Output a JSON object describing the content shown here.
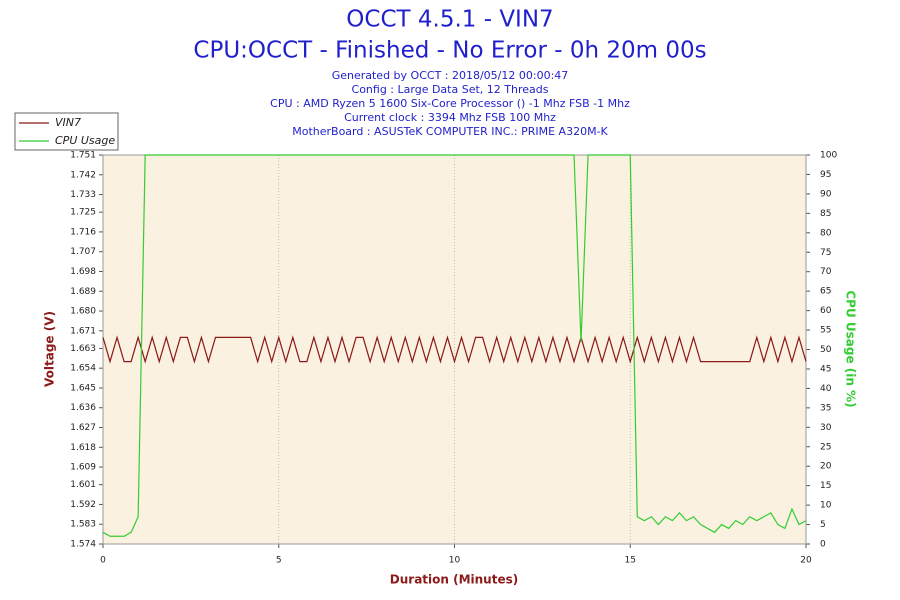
{
  "chart_data": {
    "type": "line",
    "title": "OCCT 4.5.1 - VIN7",
    "subtitle": "CPU:OCCT - Finished - No Error - 0h 20m 00s",
    "info": [
      "Generated by OCCT : 2018/05/12 00:00:47",
      "Config : Large Data Set, 12 Threads",
      "CPU : AMD Ryzen 5 1600 Six-Core Processor () -1 Mhz FSB -1 Mhz",
      "Current clock : 3394 Mhz FSB 100 Mhz",
      "MotherBoard : ASUSTeK COMPUTER INC.: PRIME A320M-K"
    ],
    "xlabel": "Duration (Minutes)",
    "ylabel": "Voltage (V)",
    "y2label": "CPU Usage (in %)",
    "xlim": [
      0,
      20
    ],
    "xticks": [
      0,
      5,
      10,
      15,
      20
    ],
    "ylim": [
      1.574,
      1.751
    ],
    "yticks": [
      1.574,
      1.583,
      1.592,
      1.601,
      1.609,
      1.618,
      1.627,
      1.636,
      1.645,
      1.654,
      1.663,
      1.671,
      {
        "value": 1.68,
        "label": "1.680"
      },
      1.689,
      1.698,
      1.707,
      1.716,
      1.725,
      1.733,
      1.742,
      1.751
    ],
    "y2lim": [
      0,
      100
    ],
    "y2ticks": [
      0,
      5,
      10,
      15,
      20,
      25,
      30,
      35,
      40,
      45,
      50,
      55,
      60,
      65,
      70,
      75,
      80,
      85,
      90,
      95,
      100
    ],
    "grid": true,
    "legend": "top-left",
    "x": [
      0,
      0.2,
      0.4,
      0.6,
      0.8,
      1,
      1.2,
      1.4,
      1.6,
      1.8,
      2,
      2.2,
      2.4,
      2.6,
      2.8,
      3,
      3.2,
      3.4,
      3.6,
      3.8,
      4,
      4.2,
      4.4,
      4.6,
      4.8,
      5,
      5.2,
      5.4,
      5.6,
      5.8,
      6,
      6.2,
      6.4,
      6.6,
      6.8,
      7,
      7.2,
      7.4,
      7.6,
      7.8,
      8,
      8.2,
      8.4,
      8.6,
      8.8,
      9,
      9.2,
      9.4,
      9.6,
      9.8,
      10,
      10.2,
      10.4,
      10.6,
      10.8,
      11,
      11.2,
      11.4,
      11.6,
      11.8,
      12,
      12.2,
      12.4,
      12.6,
      12.8,
      13,
      13.2,
      13.4,
      13.6,
      13.8,
      14,
      14.2,
      14.4,
      14.6,
      14.8,
      15,
      15.2,
      15.4,
      15.6,
      15.8,
      16,
      16.2,
      16.4,
      16.6,
      16.8,
      17,
      17.2,
      17.4,
      17.6,
      17.8,
      18,
      18.2,
      18.4,
      18.6,
      18.8,
      19,
      19.2,
      19.4,
      19.6,
      19.8,
      20
    ],
    "series": [
      {
        "name": "VIN7",
        "color": "#8b1a1a",
        "values": [
          1.668,
          1.657,
          1.668,
          1.657,
          1.657,
          1.668,
          1.657,
          1.668,
          1.657,
          1.668,
          1.657,
          1.668,
          1.668,
          1.657,
          1.668,
          1.657,
          1.668,
          1.668,
          1.668,
          1.668,
          1.668,
          1.668,
          1.657,
          1.668,
          1.657,
          1.668,
          1.657,
          1.668,
          1.657,
          1.657,
          1.668,
          1.657,
          1.668,
          1.657,
          1.668,
          1.657,
          1.668,
          1.668,
          1.657,
          1.668,
          1.657,
          1.668,
          1.657,
          1.668,
          1.657,
          1.668,
          1.657,
          1.668,
          1.657,
          1.668,
          1.657,
          1.668,
          1.657,
          1.668,
          1.668,
          1.657,
          1.668,
          1.657,
          1.668,
          1.657,
          1.668,
          1.657,
          1.668,
          1.657,
          1.668,
          1.657,
          1.668,
          1.657,
          1.668,
          1.657,
          1.668,
          1.657,
          1.668,
          1.657,
          1.668,
          1.657,
          1.668,
          1.657,
          1.668,
          1.657,
          1.668,
          1.657,
          1.668,
          1.657,
          1.668,
          1.657,
          1.657,
          1.657,
          1.657,
          1.657,
          1.657,
          1.657,
          1.657,
          1.668,
          1.657,
          1.668,
          1.657,
          1.668,
          1.657,
          1.668,
          1.657
        ]
      },
      {
        "name": "CPU Usage",
        "color": "#33cc33",
        "axis": "y2",
        "values": [
          3,
          2,
          2,
          2,
          3,
          7,
          100,
          100,
          100,
          100,
          100,
          100,
          100,
          100,
          100,
          100,
          100,
          100,
          100,
          100,
          100,
          100,
          100,
          100,
          100,
          100,
          100,
          100,
          100,
          100,
          100,
          100,
          100,
          100,
          100,
          100,
          100,
          100,
          100,
          100,
          100,
          100,
          100,
          100,
          100,
          100,
          100,
          100,
          100,
          100,
          100,
          100,
          100,
          100,
          100,
          100,
          100,
          100,
          100,
          100,
          100,
          100,
          100,
          100,
          100,
          100,
          100,
          100,
          52,
          100,
          100,
          100,
          100,
          100,
          100,
          100,
          7,
          6,
          7,
          5,
          7,
          6,
          8,
          6,
          7,
          5,
          4,
          3,
          5,
          4,
          6,
          5,
          7,
          6,
          7,
          8,
          5,
          4,
          9,
          5,
          6
        ]
      }
    ]
  }
}
